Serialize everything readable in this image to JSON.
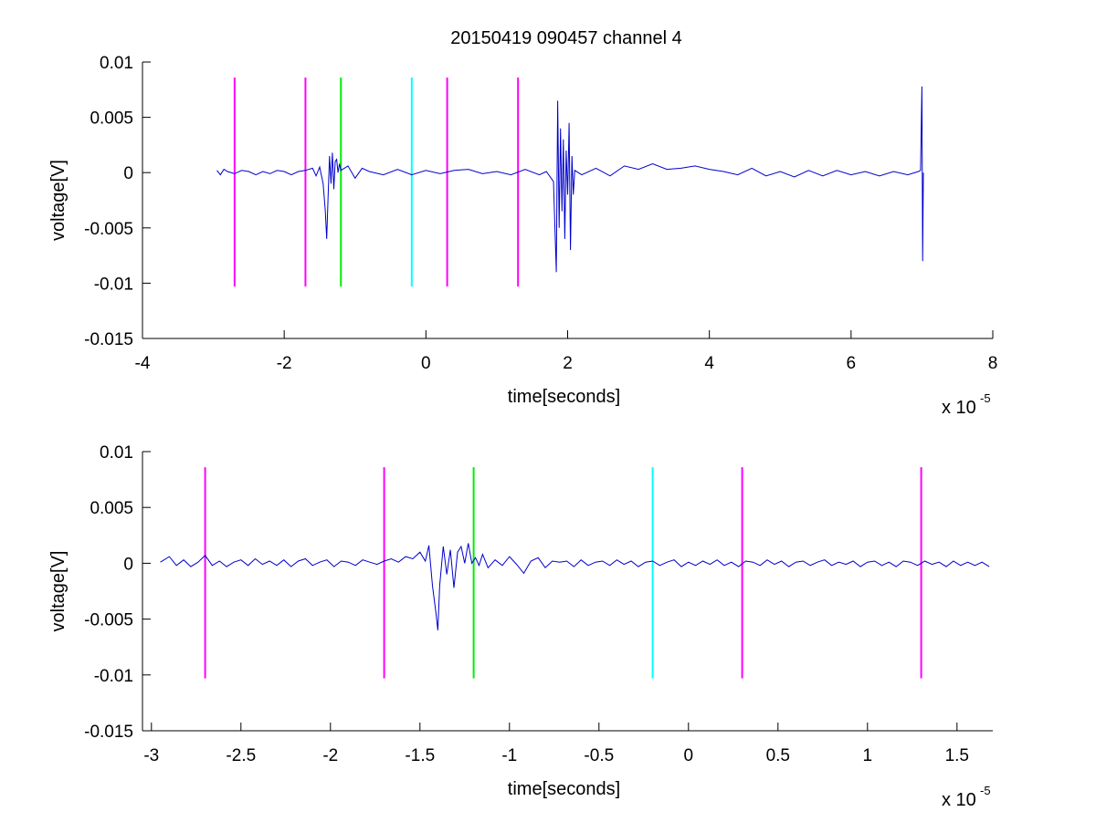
{
  "figure": {
    "title": "20150419 090457 channel 4"
  },
  "colors": {
    "signal": "#0000cc",
    "magenta": "#ff00ff",
    "green": "#00ee00",
    "cyan": "#00ffff",
    "axis": "#000000"
  },
  "chart_data": [
    {
      "type": "line",
      "name": "overview",
      "title": "20150419 090457 channel 4",
      "xlabel": "time[seconds]",
      "ylabel": "voltage[V]",
      "x_exponent_label": {
        "base": "x 10",
        "power": "-5"
      },
      "xlim": [
        -4,
        8
      ],
      "ylim": [
        -0.015,
        0.01
      ],
      "x_scale": 1e-05,
      "xticks": [
        -4,
        -2,
        0,
        2,
        4,
        6,
        8
      ],
      "xtick_labels": [
        "-4",
        "-2",
        "0",
        "2",
        "4",
        "6",
        "8"
      ],
      "yticks": [
        -0.015,
        -0.01,
        -0.005,
        0,
        0.005,
        0.01
      ],
      "ytick_labels": [
        "-0.015",
        "-0.01",
        "-0.005",
        "0",
        "0.005",
        "0.01"
      ],
      "grid": false,
      "markers": [
        {
          "x": -2.7,
          "y_range": [
            -0.0103,
            0.0086
          ],
          "color": "magenta"
        },
        {
          "x": -1.7,
          "y_range": [
            -0.0103,
            0.0086
          ],
          "color": "magenta"
        },
        {
          "x": -1.2,
          "y_range": [
            -0.0103,
            0.0086
          ],
          "color": "green"
        },
        {
          "x": -0.2,
          "y_range": [
            -0.0103,
            0.0086
          ],
          "color": "cyan"
        },
        {
          "x": 0.3,
          "y_range": [
            -0.0103,
            0.0086
          ],
          "color": "magenta"
        },
        {
          "x": 1.3,
          "y_range": [
            -0.0103,
            0.0086
          ],
          "color": "magenta"
        }
      ],
      "series": [
        {
          "color": "signal",
          "x": [
            -2.95,
            -2.9,
            -2.85,
            -2.8,
            -2.7,
            -2.6,
            -2.5,
            -2.4,
            -2.3,
            -2.2,
            -2.1,
            -2.0,
            -1.9,
            -1.8,
            -1.7,
            -1.6,
            -1.55,
            -1.5,
            -1.45,
            -1.42,
            -1.4,
            -1.38,
            -1.36,
            -1.34,
            -1.32,
            -1.3,
            -1.28,
            -1.26,
            -1.24,
            -1.22,
            -1.2,
            -1.1,
            -1.0,
            -0.9,
            -0.8,
            -0.6,
            -0.4,
            -0.2,
            0.0,
            0.2,
            0.4,
            0.6,
            0.8,
            1.0,
            1.2,
            1.4,
            1.6,
            1.7,
            1.8,
            1.84,
            1.86,
            1.88,
            1.9,
            1.92,
            1.94,
            1.96,
            1.98,
            2.0,
            2.02,
            2.04,
            2.06,
            2.08,
            2.1,
            2.2,
            2.4,
            2.6,
            2.8,
            3.0,
            3.2,
            3.4,
            3.6,
            3.8,
            4.0,
            4.2,
            4.4,
            4.6,
            4.8,
            5.0,
            5.2,
            5.4,
            5.6,
            5.8,
            6.0,
            6.2,
            6.4,
            6.6,
            6.8,
            6.95,
            6.98,
            7.0,
            7.01,
            7.02
          ],
          "y": [
            0.0002,
            -0.0002,
            0.0003,
            0.0001,
            -0.0001,
            0.0002,
            0.0001,
            -0.0002,
            0.0001,
            -0.0001,
            0.0002,
            0.0001,
            -0.0002,
            0.0001,
            0.0002,
            0.0004,
            -0.0003,
            0.0005,
            -0.001,
            -0.0035,
            -0.006,
            -0.002,
            0.0015,
            -0.001,
            0.0018,
            -0.0015,
            0.001,
            0.0012,
            0.0,
            0.0008,
            0.0002,
            0.0006,
            -0.0005,
            0.0004,
            0.0001,
            -0.0002,
            0.0003,
            -0.0002,
            0.0002,
            -0.0001,
            0.0002,
            0.0003,
            -0.0001,
            0.0001,
            -0.0002,
            0.0003,
            -0.0002,
            0.0001,
            -0.0008,
            -0.009,
            0.0065,
            -0.005,
            0.004,
            -0.0035,
            0.003,
            -0.006,
            0.002,
            -0.002,
            0.0045,
            -0.007,
            0.0015,
            -0.002,
            0.0002,
            -0.0002,
            0.0004,
            -0.0003,
            0.0006,
            0.0003,
            0.0008,
            0.0003,
            0.0004,
            0.0006,
            0.0003,
            0.0001,
            -0.0002,
            0.0004,
            -0.0003,
            0.0001,
            -0.0004,
            0.0002,
            -0.0003,
            0.0002,
            -0.0002,
            0.0001,
            -0.0003,
            0.0001,
            -0.0002,
            0.0001,
            0.0002,
            0.0078,
            -0.008,
            0.0
          ]
        }
      ]
    },
    {
      "type": "line",
      "name": "zoomed",
      "title": "",
      "xlabel": "time[seconds]",
      "ylabel": "voltage[V]",
      "x_exponent_label": {
        "base": "x 10",
        "power": "-5"
      },
      "xlim": [
        -3.05,
        1.7
      ],
      "ylim": [
        -0.015,
        0.01
      ],
      "x_scale": 1e-05,
      "xticks": [
        -3,
        -2.5,
        -2,
        -1.5,
        -1,
        -0.5,
        0,
        0.5,
        1,
        1.5
      ],
      "xtick_labels": [
        "-3",
        "-2.5",
        "-2",
        "-1.5",
        "-1",
        "-0.5",
        "0",
        "0.5",
        "1",
        "1.5"
      ],
      "yticks": [
        -0.015,
        -0.01,
        -0.005,
        0,
        0.005,
        0.01
      ],
      "ytick_labels": [
        "-0.015",
        "-0.01",
        "-0.005",
        "0",
        "0.005",
        "0.01"
      ],
      "grid": false,
      "markers": [
        {
          "x": -2.7,
          "y_range": [
            -0.0103,
            0.0086
          ],
          "color": "magenta"
        },
        {
          "x": -1.7,
          "y_range": [
            -0.0103,
            0.0086
          ],
          "color": "magenta"
        },
        {
          "x": -1.2,
          "y_range": [
            -0.0103,
            0.0086
          ],
          "color": "green"
        },
        {
          "x": -0.2,
          "y_range": [
            -0.0103,
            0.0086
          ],
          "color": "cyan"
        },
        {
          "x": 0.3,
          "y_range": [
            -0.0103,
            0.0086
          ],
          "color": "magenta"
        },
        {
          "x": 1.3,
          "y_range": [
            -0.0103,
            0.0086
          ],
          "color": "magenta"
        }
      ],
      "series": [
        {
          "color": "signal",
          "x": [
            -2.95,
            -2.9,
            -2.86,
            -2.82,
            -2.78,
            -2.74,
            -2.7,
            -2.66,
            -2.62,
            -2.58,
            -2.54,
            -2.5,
            -2.46,
            -2.42,
            -2.38,
            -2.34,
            -2.3,
            -2.26,
            -2.22,
            -2.18,
            -2.14,
            -2.1,
            -2.06,
            -2.02,
            -1.98,
            -1.94,
            -1.9,
            -1.86,
            -1.82,
            -1.78,
            -1.74,
            -1.7,
            -1.66,
            -1.62,
            -1.58,
            -1.54,
            -1.5,
            -1.47,
            -1.45,
            -1.43,
            -1.41,
            -1.4,
            -1.39,
            -1.37,
            -1.35,
            -1.33,
            -1.31,
            -1.29,
            -1.27,
            -1.25,
            -1.23,
            -1.21,
            -1.19,
            -1.17,
            -1.15,
            -1.12,
            -1.08,
            -1.04,
            -1.0,
            -0.96,
            -0.92,
            -0.88,
            -0.84,
            -0.8,
            -0.76,
            -0.72,
            -0.68,
            -0.64,
            -0.6,
            -0.56,
            -0.52,
            -0.48,
            -0.44,
            -0.4,
            -0.36,
            -0.32,
            -0.28,
            -0.24,
            -0.2,
            -0.16,
            -0.12,
            -0.08,
            -0.04,
            0.0,
            0.04,
            0.08,
            0.12,
            0.16,
            0.2,
            0.24,
            0.28,
            0.32,
            0.36,
            0.4,
            0.44,
            0.48,
            0.52,
            0.56,
            0.6,
            0.64,
            0.68,
            0.72,
            0.76,
            0.8,
            0.84,
            0.88,
            0.92,
            0.96,
            1.0,
            1.04,
            1.08,
            1.12,
            1.16,
            1.2,
            1.24,
            1.28,
            1.32,
            1.36,
            1.4,
            1.44,
            1.48,
            1.52,
            1.56,
            1.6,
            1.64,
            1.68
          ],
          "y": [
            0.0001,
            0.0006,
            -0.0002,
            0.0003,
            -0.0003,
            0.0001,
            0.0007,
            -0.0002,
            0.0002,
            -0.0003,
            0.0001,
            0.0003,
            -0.0002,
            0.0004,
            -0.0001,
            0.0002,
            -0.0002,
            0.0003,
            -0.0003,
            0.0002,
            0.0004,
            -0.0002,
            0.0001,
            0.0003,
            -0.0003,
            0.0002,
            0.0001,
            -0.0002,
            0.0003,
            0.0001,
            -0.0001,
            0.0002,
            0.0004,
            0.0001,
            0.0006,
            0.0004,
            0.001,
            0.0002,
            0.0016,
            -0.002,
            -0.0045,
            -0.006,
            -0.002,
            0.0015,
            -0.001,
            0.0012,
            -0.0022,
            0.001,
            0.0015,
            0.0,
            0.0018,
            0.0,
            0.0005,
            -0.0002,
            0.0008,
            -0.0004,
            0.0003,
            -0.0002,
            0.0006,
            -0.0001,
            -0.0009,
            0.0002,
            0.0005,
            -0.0004,
            0.0002,
            0.0001,
            0.0002,
            -0.0003,
            0.0003,
            -0.0002,
            0.0001,
            0.0002,
            -0.0002,
            0.0003,
            -0.0001,
            0.0002,
            -0.0003,
            0.0001,
            0.0002,
            -0.0002,
            0.0001,
            0.0003,
            -0.0003,
            0.0001,
            -0.0002,
            0.0002,
            -0.0001,
            0.0003,
            -0.0002,
            0.0001,
            -0.0003,
            0.0002,
            0.0001,
            -0.0002,
            0.0003,
            -0.0001,
            0.0002,
            -0.0003,
            0.0001,
            0.0002,
            -0.0002,
            0.0001,
            0.0003,
            -0.0002,
            0.0001,
            -0.0001,
            0.0002,
            -0.0003,
            0.0001,
            0.0002,
            -0.0002,
            0.0001,
            -0.0003,
            0.0002,
            0.0001,
            -0.0002,
            0.0002,
            -0.0001,
            0.0001,
            -0.0003,
            0.0002,
            -0.0002,
            0.0001,
            -0.0002,
            0.0001,
            -0.0003
          ]
        }
      ]
    }
  ]
}
